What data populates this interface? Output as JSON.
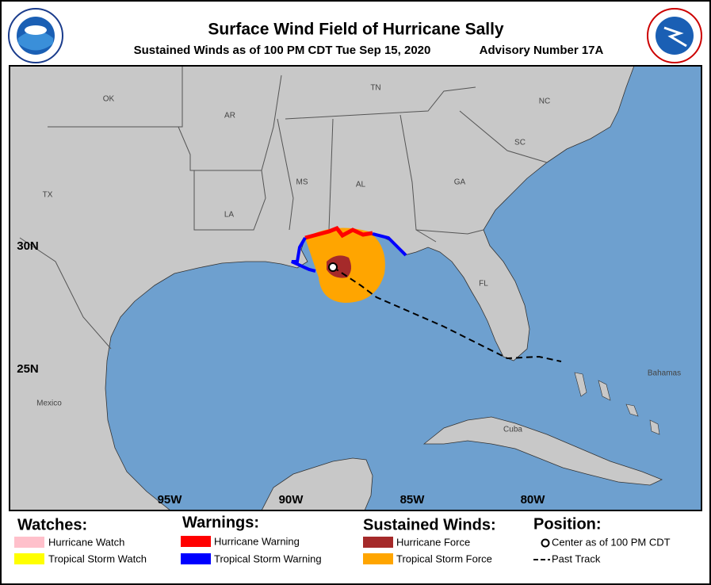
{
  "header": {
    "title": "Surface Wind Field of Hurricane Sally",
    "subtitle": "Sustained Winds as of 100 PM CDT Tue Sep 15, 2020",
    "advisory": "Advisory Number 17A"
  },
  "map": {
    "regions": [
      "OK",
      "TN",
      "NC",
      "AR",
      "SC",
      "TX",
      "MS",
      "AL",
      "GA",
      "LA",
      "FL",
      "Mexico",
      "Cuba",
      "Bahamas"
    ],
    "latitudes": [
      "30N",
      "25N"
    ],
    "longitudes": [
      "95W",
      "90W",
      "85W",
      "80W"
    ]
  },
  "legend": {
    "watches": {
      "title": "Watches:",
      "items": [
        "Hurricane Watch",
        "Tropical Storm Watch"
      ]
    },
    "warnings": {
      "title": "Warnings:",
      "items": [
        "Hurricane Warning",
        "Tropical Storm Warning"
      ]
    },
    "winds": {
      "title": "Sustained Winds:",
      "items": [
        "Hurricane Force",
        "Tropical Storm Force"
      ]
    },
    "position": {
      "title": "Position:",
      "items": [
        "Center as of 100 PM CDT",
        "Past Track"
      ]
    }
  }
}
